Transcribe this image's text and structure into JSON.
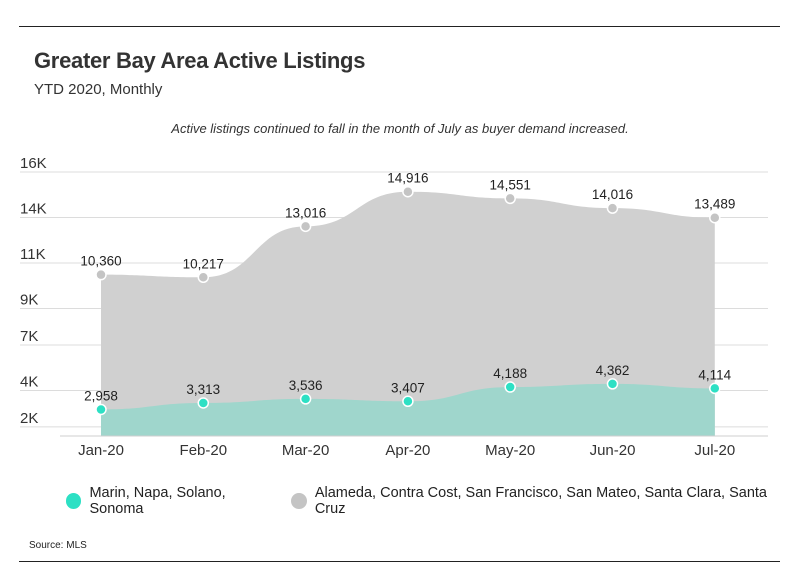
{
  "title": "Greater Bay Area Active Listings",
  "subtitle": "YTD 2020, Monthly",
  "annotation": "Active listings continued to fall in the month of July as buyer demand increased.",
  "source": "Source: MLS",
  "chart_data": {
    "type": "area",
    "categories": [
      "Jan-20",
      "Feb-20",
      "Mar-20",
      "Apr-20",
      "May-20",
      "Jun-20",
      "Jul-20"
    ],
    "ylim": [
      1500,
      16000
    ],
    "y_ticks": [
      {
        "value": 2000,
        "label": "2K"
      },
      {
        "value": 4000,
        "label": "4K"
      },
      {
        "value": 6500,
        "label": "7K"
      },
      {
        "value": 8500,
        "label": "9K"
      },
      {
        "value": 11000,
        "label": "11K"
      },
      {
        "value": 13500,
        "label": "14K"
      },
      {
        "value": 16000,
        "label": "16K"
      }
    ],
    "grid": true,
    "legend_position": "bottom-left",
    "series": [
      {
        "name": "Alameda, Contra Cost, San Francisco, San Mateo, Santa Clara, Santa Cruz",
        "values": [
          10360,
          10217,
          13016,
          14916,
          14551,
          14016,
          13489
        ],
        "labels": [
          "10,360",
          "10,217",
          "13,016",
          "14,916",
          "14,551",
          "14,016",
          "13,489"
        ],
        "fill": "#d0d0d0",
        "marker": "#c4c4c4"
      },
      {
        "name": "Marin, Napa, Solano, Sonoma",
        "values": [
          2958,
          3313,
          3536,
          3407,
          4188,
          4362,
          4114
        ],
        "labels": [
          "2,958",
          "3,313",
          "3,536",
          "3,407",
          "4,188",
          "4,362",
          "4,114"
        ],
        "fill": "#9fd6cc",
        "marker": "#2de0c4"
      }
    ]
  }
}
